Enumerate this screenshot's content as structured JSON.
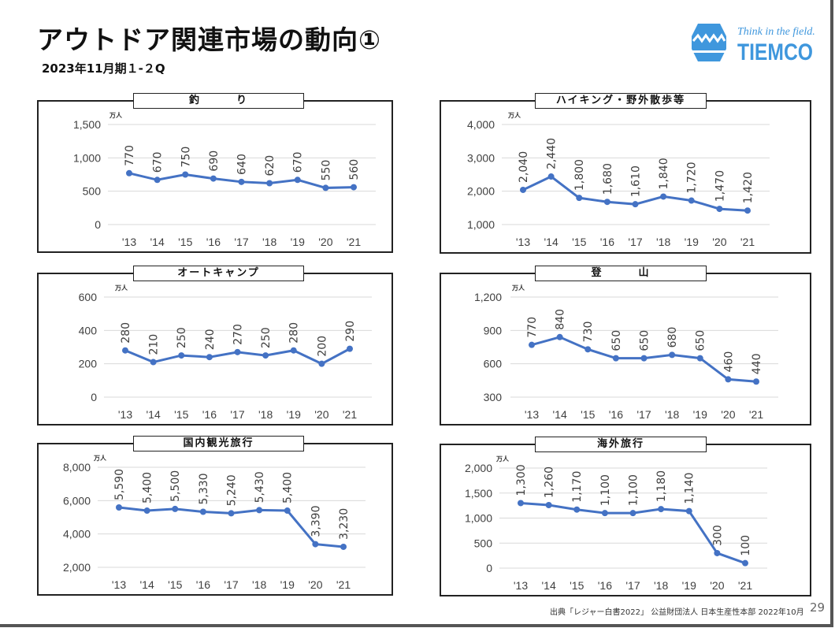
{
  "slide": {
    "title": "アウトドア関連市場の動向①",
    "subtitle": "2023年11月期１-２Q",
    "logo": {
      "tagline": "Think in the field.",
      "brand": "TIEMCO",
      "color": "#3f97dd"
    },
    "footer": "出典「レジャー白書2022」 公益財団法人 日本生産性本部 2022年10月",
    "page_number": "29"
  },
  "line_color": "#4472c4",
  "chart_data": [
    {
      "type": "line",
      "title": "釣　　　り",
      "unit": "万人",
      "categories": [
        "'13",
        "'14",
        "'15",
        "'16",
        "'17",
        "'18",
        "'19",
        "'20",
        "'21"
      ],
      "values": [
        770,
        670,
        750,
        690,
        640,
        620,
        670,
        550,
        560
      ],
      "ylim": [
        0,
        1500
      ],
      "yticks": [
        0,
        500,
        1000,
        1500
      ],
      "grid": true
    },
    {
      "type": "line",
      "title": "ハイキング・野外散歩等",
      "unit": "万人",
      "categories": [
        "'13",
        "'14",
        "'15",
        "'16",
        "'17",
        "'18",
        "'19",
        "'20",
        "'21"
      ],
      "values": [
        2040,
        2440,
        1800,
        1680,
        1610,
        1840,
        1720,
        1470,
        1420
      ],
      "ylim": [
        1000,
        4000
      ],
      "yticks": [
        1000,
        2000,
        3000,
        4000
      ],
      "grid": true
    },
    {
      "type": "line",
      "title": "オートキャンプ",
      "unit": "万人",
      "categories": [
        "'13",
        "'14",
        "'15",
        "'16",
        "'17",
        "'18",
        "'19",
        "'20",
        "'21"
      ],
      "values": [
        280,
        210,
        250,
        240,
        270,
        250,
        280,
        200,
        290
      ],
      "ylim": [
        0,
        600
      ],
      "yticks": [
        0,
        200,
        400,
        600
      ],
      "grid": true
    },
    {
      "type": "line",
      "title": "登　　　山",
      "unit": "万人",
      "categories": [
        "'13",
        "'14",
        "'15",
        "'16",
        "'17",
        "'18",
        "'19",
        "'20",
        "'21"
      ],
      "values": [
        770,
        840,
        730,
        650,
        650,
        680,
        650,
        460,
        440
      ],
      "ylim": [
        300,
        1200
      ],
      "yticks": [
        300,
        600,
        900,
        1200
      ],
      "grid": true
    },
    {
      "type": "line",
      "title": "国内観光旅行",
      "unit": "万人",
      "categories": [
        "'13",
        "'14",
        "'15",
        "'16",
        "'17",
        "'18",
        "'19",
        "'20",
        "'21"
      ],
      "values": [
        5590,
        5400,
        5500,
        5330,
        5240,
        5430,
        5400,
        3390,
        3230
      ],
      "ylim": [
        2000,
        8000
      ],
      "yticks": [
        2000,
        4000,
        6000,
        8000
      ],
      "grid": true
    },
    {
      "type": "line",
      "title": "海外旅行",
      "unit": "万人",
      "categories": [
        "'13",
        "'14",
        "'15",
        "'16",
        "'17",
        "'18",
        "'19",
        "'20",
        "'21"
      ],
      "values": [
        1300,
        1260,
        1170,
        1100,
        1100,
        1180,
        1140,
        300,
        100
      ],
      "ylim": [
        0,
        2000
      ],
      "yticks": [
        0,
        500,
        1000,
        1500,
        2000
      ],
      "grid": true
    }
  ]
}
